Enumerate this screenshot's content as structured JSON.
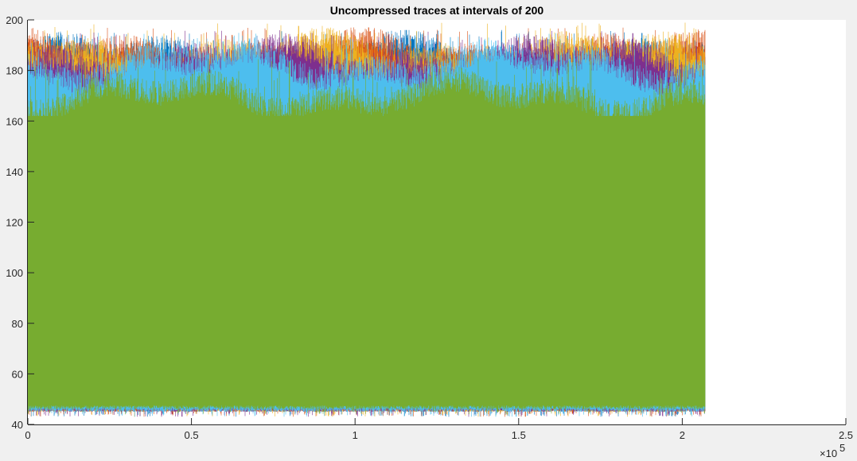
{
  "chart_data": {
    "type": "line",
    "title": "Uncompressed traces at intervals of 200",
    "xlabel": "",
    "ylabel": "",
    "xlim": [
      0,
      250000
    ],
    "ylim": [
      40,
      200
    ],
    "x_ticks": [
      0,
      50000,
      100000,
      150000,
      200000,
      250000
    ],
    "x_tick_labels": [
      "0",
      "0.5",
      "1",
      "1.5",
      "2",
      "2.5"
    ],
    "x_exponent_label": "×10",
    "x_exponent_power": "5",
    "y_ticks": [
      40,
      60,
      80,
      100,
      120,
      140,
      160,
      180,
      200
    ],
    "y_tick_labels": [
      "40",
      "60",
      "80",
      "100",
      "120",
      "140",
      "160",
      "180",
      "200"
    ],
    "grid": false,
    "legend": "none",
    "data_x_range": [
      0,
      207000
    ],
    "series": [
      {
        "color": "#0072BD",
        "envelope": {
          "upper_typical": 185,
          "upper_max": 196,
          "lower_typical": 45,
          "lower_min": 43
        }
      },
      {
        "color": "#D95319",
        "envelope": {
          "upper_typical": 186,
          "upper_max": 197,
          "lower_typical": 45,
          "lower_min": 43
        }
      },
      {
        "color": "#EDB120",
        "envelope": {
          "upper_typical": 186,
          "upper_max": 199,
          "lower_typical": 45,
          "lower_min": 43
        }
      },
      {
        "color": "#7E2F8E",
        "envelope": {
          "upper_typical": 184,
          "upper_max": 196,
          "lower_typical": 45,
          "lower_min": 43
        }
      },
      {
        "color": "#4DBEEE",
        "envelope": {
          "upper_typical": 182,
          "upper_max": 195,
          "lower_typical": 45,
          "lower_min": 43
        }
      },
      {
        "color": "#77AC30",
        "envelope": {
          "upper_typical": 170,
          "upper_max": 185,
          "lower_typical": 46,
          "lower_min": 44
        }
      }
    ]
  }
}
